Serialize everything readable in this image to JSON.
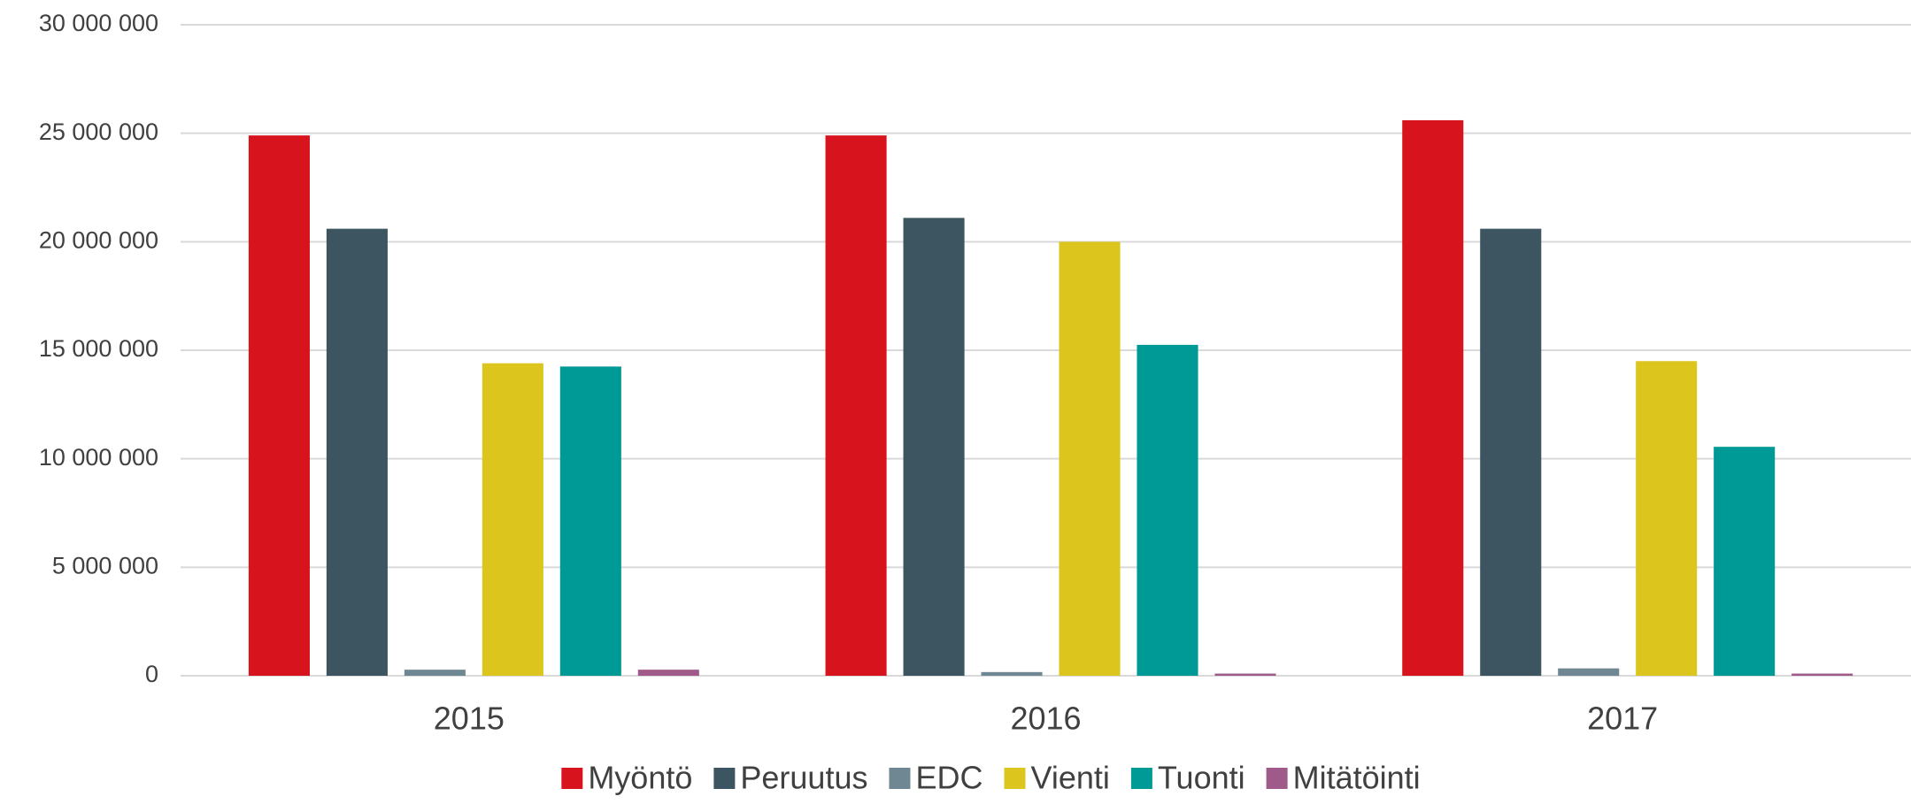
{
  "chart_data": {
    "type": "bar",
    "categories": [
      "2015",
      "2016",
      "2017"
    ],
    "series": [
      {
        "name": "Myöntö",
        "color": "#d7141e",
        "values": [
          24900000,
          24900000,
          25600000
        ]
      },
      {
        "name": "Peruutus",
        "color": "#3d5560",
        "values": [
          20600000,
          21100000,
          20600000
        ]
      },
      {
        "name": "EDC",
        "color": "#6f8792",
        "values": [
          280000,
          170000,
          340000
        ]
      },
      {
        "name": "Vienti",
        "color": "#dcc61e",
        "values": [
          14400000,
          20000000,
          14500000
        ]
      },
      {
        "name": "Tuonti",
        "color": "#009a96",
        "values": [
          14250000,
          15250000,
          10550000
        ]
      },
      {
        "name": "Mitätöinti",
        "color": "#a05a8a",
        "values": [
          280000,
          100000,
          100000
        ]
      }
    ],
    "ylim": [
      0,
      30000000
    ],
    "yticks": [
      {
        "value": 0,
        "label": "0"
      },
      {
        "value": 5000000,
        "label": "5 000 000"
      },
      {
        "value": 10000000,
        "label": "10 000 000"
      },
      {
        "value": 15000000,
        "label": "15 000 000"
      },
      {
        "value": 20000000,
        "label": "20 000 000"
      },
      {
        "value": 25000000,
        "label": "25 000 000"
      },
      {
        "value": 30000000,
        "label": "30 000 000"
      }
    ],
    "grid": true,
    "legend": "bottom"
  }
}
